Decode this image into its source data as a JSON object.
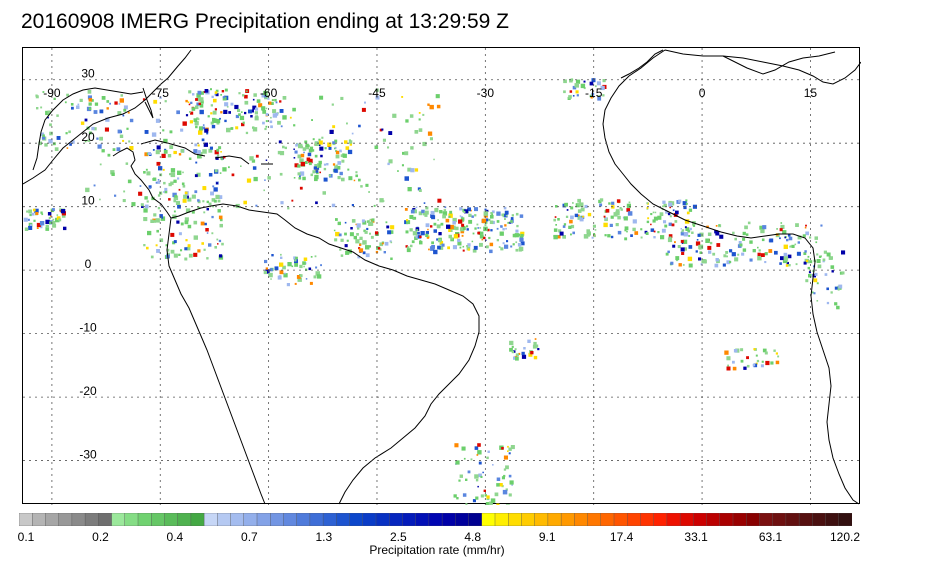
{
  "title": "20160908 IMERG Precipitation ending at 13:29:59 Z",
  "map": {
    "lon_labels": [
      "-90",
      "-75",
      "-60",
      "-45",
      "-30",
      "-15",
      "0",
      "15"
    ],
    "lat_labels": [
      "30",
      "20",
      "10",
      "0",
      "-10",
      "-20",
      "-30"
    ],
    "grid": "dotted",
    "lon_range": [
      -94,
      22
    ],
    "lat_range": [
      -37,
      35
    ]
  },
  "colorbar": {
    "title": "Precipitation rate (mm/hr)",
    "tick_labels": [
      "0.1",
      "0.2",
      "0.4",
      "0.7",
      "1.3",
      "2.5",
      "4.8",
      "9.1",
      "17.4",
      "33.1",
      "63.1",
      "120.2"
    ],
    "colors": [
      "#c8c8c8",
      "#b4b4b4",
      "#a6a6a6",
      "#989898",
      "#8a8a8a",
      "#7c7c7c",
      "#6e6e6e",
      "#9be89b",
      "#85dd85",
      "#70d270",
      "#66c766",
      "#5abc5a",
      "#4fb24f",
      "#44a844",
      "#c6d6f6",
      "#b5c9f2",
      "#a4bcef",
      "#93afeb",
      "#83a2e7",
      "#7295e3",
      "#6188df",
      "#4f7bdb",
      "#3e6ed7",
      "#2d61d3",
      "#1d54cf",
      "#0c47cb",
      "#0a3cc7",
      "#0831c2",
      "#0626be",
      "#041bba",
      "#0210b6",
      "#0005b2",
      "#0000a8",
      "#00009c",
      "#000090",
      "#ffff00",
      "#ffee00",
      "#ffdd00",
      "#ffcc00",
      "#ffbb00",
      "#ffaa00",
      "#ff9900",
      "#ff8800",
      "#ff7700",
      "#ff6600",
      "#ff5500",
      "#ff4400",
      "#ff3300",
      "#ff2200",
      "#ee1100",
      "#dd0800",
      "#cc0000",
      "#bb0000",
      "#aa0000",
      "#990000",
      "#880000",
      "#7a1010",
      "#6e1010",
      "#621010",
      "#561010",
      "#4a1010",
      "#3e1010",
      "#321010"
    ]
  }
}
